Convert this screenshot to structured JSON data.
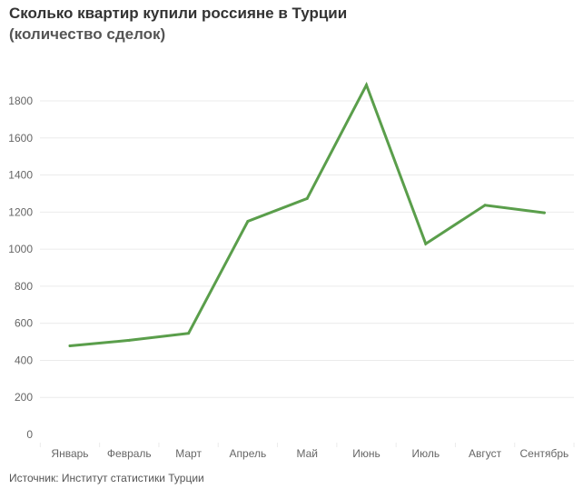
{
  "title": "Сколько квартир купили россияне в Турции",
  "subtitle": "(количество сделок)",
  "source": "Источник: Институт статистики Турции",
  "colors": {
    "line": "#5a9e4b",
    "grid": "#ebebeb",
    "text": "#666666"
  },
  "chart_data": {
    "type": "line",
    "title": "Сколько квартир купили россияне в Турции",
    "subtitle": "(количество сделок)",
    "xlabel": "",
    "ylabel": "",
    "categories": [
      "Январь",
      "Февраль",
      "Март",
      "Апрель",
      "Май",
      "Июнь",
      "Июль",
      "Август",
      "Сентябрь"
    ],
    "series": [
      {
        "values": [
          478,
          508,
          546,
          1150,
          1273,
          1886,
          1029,
          1237,
          1196
        ]
      }
    ],
    "yticks": [
      0,
      200,
      400,
      600,
      800,
      1000,
      1200,
      1400,
      1600,
      1800
    ],
    "ylim": [
      0,
      1900
    ],
    "grid": true,
    "legend": "none"
  }
}
